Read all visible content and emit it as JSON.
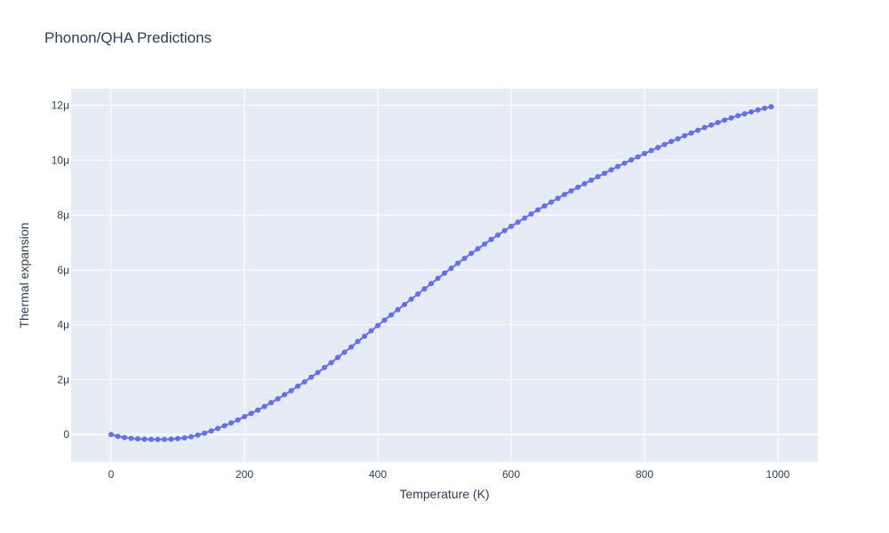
{
  "title": "Phonon/QHA Predictions",
  "chart_data": {
    "type": "scatter",
    "mode": "lines+markers",
    "title": "Phonon/QHA Predictions",
    "xlabel": "Temperature (K)",
    "ylabel": "Thermal expansion",
    "xlim": [
      -60,
      1060
    ],
    "ylim": [
      -1e-06,
      1.26e-05
    ],
    "x_ticks": [
      0,
      200,
      400,
      600,
      800,
      1000
    ],
    "x_tick_labels": [
      "0",
      "200",
      "400",
      "600",
      "800",
      "1000"
    ],
    "y_ticks": [
      0,
      2e-06,
      4e-06,
      6e-06,
      8e-06,
      1e-05,
      1.2e-05
    ],
    "y_tick_labels": [
      "0",
      "2μ",
      "4μ",
      "6μ",
      "8μ",
      "10μ",
      "12μ"
    ],
    "grid": true,
    "colors": {
      "series": "#636efa",
      "plot_bg": "#e5ecf6",
      "grid": "#ffffff",
      "text": "#2a3f5f"
    },
    "series": [
      {
        "x": [
          0,
          10,
          20,
          30,
          40,
          50,
          60,
          70,
          80,
          90,
          100,
          110,
          120,
          130,
          140,
          150,
          160,
          170,
          180,
          190,
          200,
          210,
          220,
          230,
          240,
          250,
          260,
          270,
          280,
          290,
          300,
          310,
          320,
          330,
          340,
          350,
          360,
          370,
          380,
          390,
          400,
          410,
          420,
          430,
          440,
          450,
          460,
          470,
          480,
          490,
          500,
          510,
          520,
          530,
          540,
          550,
          560,
          570,
          580,
          590,
          600,
          610,
          620,
          630,
          640,
          650,
          660,
          670,
          680,
          690,
          700,
          710,
          720,
          730,
          740,
          750,
          760,
          770,
          780,
          790,
          800,
          810,
          820,
          830,
          840,
          850,
          860,
          870,
          880,
          890,
          900,
          910,
          920,
          930,
          940,
          950,
          960,
          970,
          980,
          990
        ],
        "y": [
          0,
          -7e-08,
          -1.1e-07,
          -1.4e-07,
          -1.6e-07,
          -1.7e-07,
          -1.8e-07,
          -1.8e-07,
          -1.8e-07,
          -1.7e-07,
          -1.5e-07,
          -1.2e-07,
          -8e-08,
          -2e-08,
          5e-08,
          1.3e-07,
          2.2e-07,
          3.2e-07,
          4.2e-07,
          5.3e-07,
          6.5e-07,
          7.7e-07,
          8.9e-07,
          1.02e-06,
          1.16e-06,
          1.3e-06,
          1.45e-06,
          1.6e-06,
          1.76e-06,
          1.92e-06,
          2.09e-06,
          2.26e-06,
          2.44e-06,
          2.62e-06,
          2.81e-06,
          3e-06,
          3.19e-06,
          3.39e-06,
          3.58e-06,
          3.78e-06,
          3.97e-06,
          4.17e-06,
          4.36e-06,
          4.55e-06,
          4.74e-06,
          4.93e-06,
          5.12e-06,
          5.31e-06,
          5.5e-06,
          5.69e-06,
          5.88e-06,
          6.06e-06,
          6.24e-06,
          6.42e-06,
          6.6e-06,
          6.77e-06,
          6.94e-06,
          7.11e-06,
          7.27e-06,
          7.43e-06,
          7.59e-06,
          7.74e-06,
          7.89e-06,
          8.04e-06,
          8.19e-06,
          8.33e-06,
          8.47e-06,
          8.61e-06,
          8.75e-06,
          8.88e-06,
          9.01e-06,
          9.14e-06,
          9.27e-06,
          9.4e-06,
          9.52e-06,
          9.65e-06,
          9.77e-06,
          9.89e-06,
          1.001e-05,
          1.012e-05,
          1.024e-05,
          1.035e-05,
          1.046e-05,
          1.057e-05,
          1.068e-05,
          1.078e-05,
          1.089e-05,
          1.099e-05,
          1.109e-05,
          1.119e-05,
          1.128e-05,
          1.137e-05,
          1.146e-05,
          1.154e-05,
          1.162e-05,
          1.169e-05,
          1.176e-05,
          1.183e-05,
          1.189e-05,
          1.195e-05
        ]
      }
    ]
  }
}
